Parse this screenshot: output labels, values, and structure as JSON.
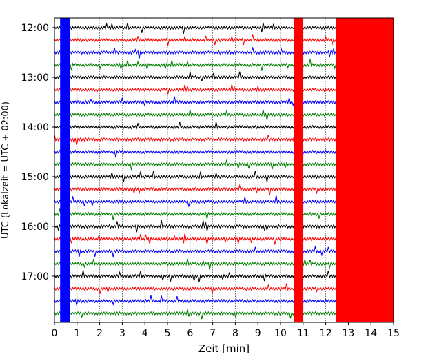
{
  "chart_data": {
    "type": "line",
    "title": "",
    "xlabel": "Zeit  [min]",
    "ylabel": "UTC (Lokalzeit = UTC + 02:00)",
    "xlim": [
      0,
      15
    ],
    "x_ticks": [
      0,
      1,
      2,
      3,
      4,
      5,
      6,
      7,
      8,
      9,
      10,
      11,
      12,
      13,
      14,
      15
    ],
    "y_ticks": [
      "12:00",
      "13:00",
      "14:00",
      "15:00",
      "16:00",
      "17:00"
    ],
    "grid": "vertical dotted",
    "trace_colors": [
      "#000000",
      "#ff0000",
      "#0000ff",
      "#008000"
    ],
    "trace_start_times": [
      "12:00",
      "12:15",
      "12:30",
      "12:45",
      "13:00",
      "13:15",
      "13:30",
      "13:45",
      "14:00",
      "14:15",
      "14:30",
      "14:45",
      "15:00",
      "15:15",
      "15:30",
      "15:45",
      "16:00",
      "16:15",
      "16:30",
      "16:45",
      "17:00",
      "17:15",
      "17:30",
      "17:45"
    ],
    "saturated_segments": [
      {
        "color": "#0000ff",
        "x": [
          0.25,
          0.7
        ],
        "note": "full height"
      },
      {
        "color": "#ff0000",
        "x": [
          10.6,
          11.0
        ],
        "note": "full height"
      },
      {
        "color": "#ff0000",
        "x": [
          12.45,
          15.0
        ],
        "note": "dense high-amplitude"
      }
    ]
  }
}
